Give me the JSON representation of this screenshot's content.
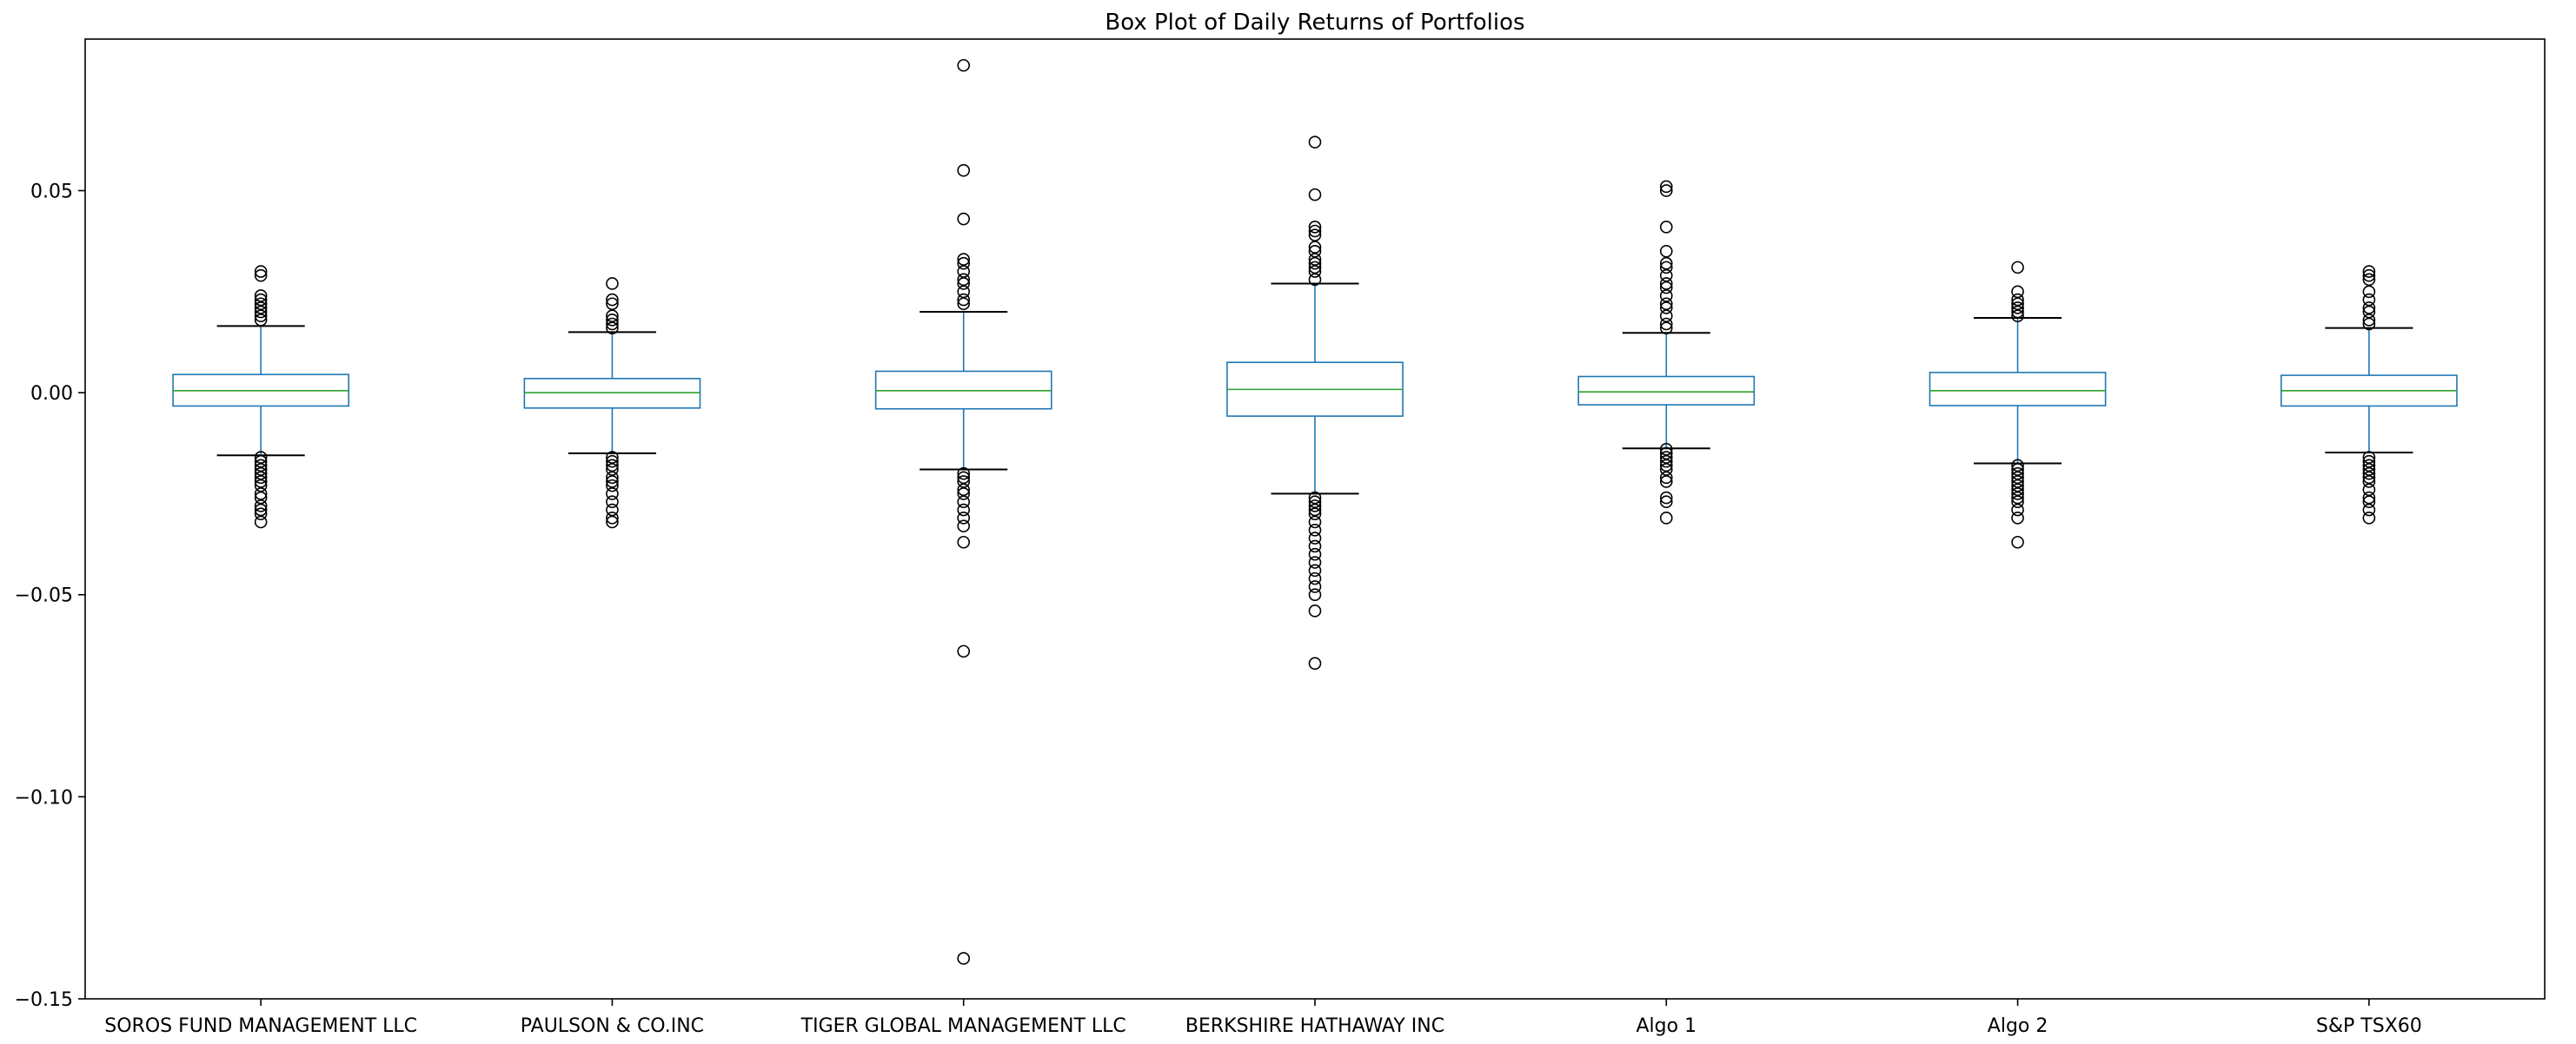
{
  "chart_data": {
    "type": "box",
    "title": "Box Plot of Daily Returns of Portfolios",
    "xlabel": "",
    "ylabel": "",
    "ylim": [
      -0.15,
      0.0875
    ],
    "yticks": [
      0.05,
      0.0,
      -0.05,
      -0.1,
      -0.15
    ],
    "ytick_labels": [
      "0.05",
      "0.00",
      "−0.05",
      "−0.10",
      "−0.15"
    ],
    "grid": false,
    "colors": {
      "box": "#1f77b4",
      "median": "#2ca02c",
      "whisker": "#1f77b4",
      "cap": "#000000",
      "flier": "#000000"
    },
    "series": [
      {
        "category": "SOROS FUND MANAGEMENT LLC",
        "whislo": -0.0155,
        "q1": -0.0033,
        "med": 0.0005,
        "q3": 0.0045,
        "whishi": 0.0165,
        "fliers": [
          0.03,
          0.029,
          0.024,
          0.023,
          0.022,
          0.021,
          0.02,
          0.019,
          0.018,
          -0.016,
          -0.017,
          -0.018,
          -0.019,
          -0.02,
          -0.021,
          -0.022,
          -0.023,
          -0.025,
          -0.026,
          -0.028,
          -0.029,
          -0.03,
          -0.032
        ]
      },
      {
        "category": "PAULSON & CO.INC",
        "whislo": -0.015,
        "q1": -0.0038,
        "med": 0.0,
        "q3": 0.0035,
        "whishi": 0.015,
        "fliers": [
          0.027,
          0.023,
          0.022,
          0.019,
          0.018,
          0.017,
          0.016,
          -0.016,
          -0.017,
          -0.018,
          -0.019,
          -0.021,
          -0.022,
          -0.023,
          -0.025,
          -0.027,
          -0.029,
          -0.031,
          -0.032
        ]
      },
      {
        "category": "TIGER GLOBAL MANAGEMENT LLC",
        "whislo": -0.019,
        "q1": -0.004,
        "med": 0.0005,
        "q3": 0.0053,
        "whishi": 0.02,
        "fliers": [
          0.081,
          0.055,
          0.043,
          0.033,
          0.032,
          0.03,
          0.028,
          0.027,
          0.025,
          0.023,
          0.022,
          -0.02,
          -0.021,
          -0.022,
          -0.024,
          -0.025,
          -0.027,
          -0.029,
          -0.031,
          -0.033,
          -0.037,
          -0.064,
          -0.14
        ]
      },
      {
        "category": "BERKSHIRE HATHAWAY INC",
        "whislo": -0.025,
        "q1": -0.0058,
        "med": 0.0008,
        "q3": 0.0075,
        "whishi": 0.027,
        "fliers": [
          0.062,
          0.049,
          0.041,
          0.04,
          0.039,
          0.036,
          0.035,
          0.033,
          0.032,
          0.031,
          0.03,
          0.028,
          -0.026,
          -0.027,
          -0.028,
          -0.029,
          -0.03,
          -0.032,
          -0.034,
          -0.036,
          -0.038,
          -0.04,
          -0.042,
          -0.044,
          -0.046,
          -0.048,
          -0.05,
          -0.054,
          -0.067
        ]
      },
      {
        "category": "Algo 1",
        "whislo": -0.0138,
        "q1": -0.003,
        "med": 0.0002,
        "q3": 0.004,
        "whishi": 0.0148,
        "fliers": [
          0.051,
          0.05,
          0.041,
          0.035,
          0.032,
          0.031,
          0.029,
          0.027,
          0.026,
          0.024,
          0.022,
          0.021,
          0.019,
          0.017,
          0.016,
          -0.014,
          -0.015,
          -0.016,
          -0.017,
          -0.018,
          -0.019,
          -0.021,
          -0.022,
          -0.026,
          -0.027,
          -0.031
        ]
      },
      {
        "category": "Algo 2",
        "whislo": -0.0175,
        "q1": -0.0032,
        "med": 0.0005,
        "q3": 0.005,
        "whishi": 0.0185,
        "fliers": [
          0.031,
          0.025,
          0.023,
          0.022,
          0.021,
          0.02,
          0.019,
          -0.018,
          -0.019,
          -0.02,
          -0.021,
          -0.022,
          -0.023,
          -0.024,
          -0.025,
          -0.026,
          -0.027,
          -0.029,
          -0.031,
          -0.037
        ]
      },
      {
        "category": "S&P TSX60",
        "whislo": -0.0148,
        "q1": -0.0033,
        "med": 0.0005,
        "q3": 0.0043,
        "whishi": 0.016,
        "fliers": [
          0.03,
          0.029,
          0.028,
          0.025,
          0.023,
          0.021,
          0.02,
          0.018,
          0.017,
          -0.016,
          -0.017,
          -0.018,
          -0.019,
          -0.02,
          -0.021,
          -0.022,
          -0.024,
          -0.026,
          -0.027,
          -0.029,
          -0.031
        ]
      }
    ]
  }
}
